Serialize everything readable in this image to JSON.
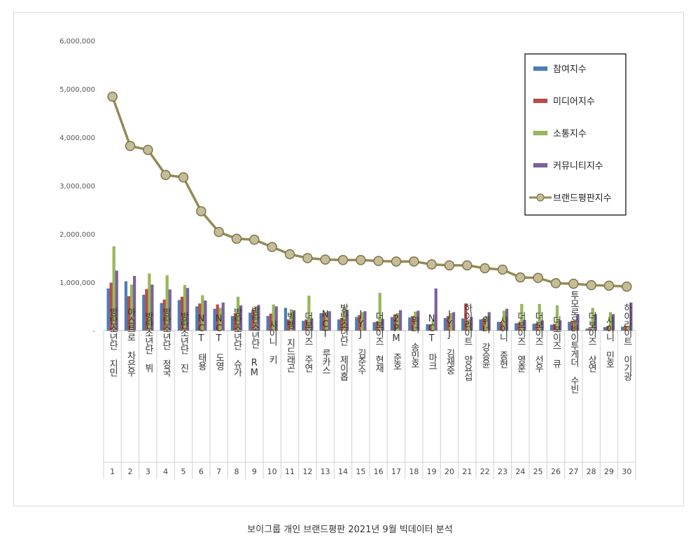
{
  "caption": "보이그룹 개인 브랜드평판  2021년 9월 빅데이터 분석",
  "chart_data": {
    "type": "bar",
    "title": "",
    "xlabel": "",
    "ylabel": "",
    "ylim": [
      0,
      6000000
    ],
    "yticks": [
      {
        "value": 0,
        "label": "-"
      },
      {
        "value": 1000000,
        "label": "1,000,000"
      },
      {
        "value": 2000000,
        "label": "2,000,000"
      },
      {
        "value": 3000000,
        "label": "3,000,000"
      },
      {
        "value": 4000000,
        "label": "4,000,000"
      },
      {
        "value": 5000000,
        "label": "5,000,000"
      },
      {
        "value": 6000000,
        "label": "6,000,000"
      }
    ],
    "ranks": [
      "1",
      "2",
      "3",
      "4",
      "5",
      "6",
      "7",
      "8",
      "9",
      "10",
      "11",
      "12",
      "13",
      "14",
      "15",
      "16",
      "17",
      "18",
      "19",
      "20",
      "21",
      "22",
      "23",
      "24",
      "25",
      "26",
      "27",
      "28",
      "29",
      "30"
    ],
    "categories": [
      "방탄소년단 지민",
      "아스트로 차은우",
      "방탄소년단 뷔",
      "방탄소년단 정국",
      "방탄소년단 진",
      "NCT 태용",
      "NCT 도영",
      "방탄소년단 슈가",
      "방탄소년단 RM",
      "샤이니 키",
      "빅뱅 지드래곤",
      "더보이즈 주연",
      "NCT 루카스",
      "방탄소년단 제이홉",
      "JYJ 김준수",
      "더보이즈 현재",
      "2PM 준호",
      "위너 송민호",
      "NCT 마크",
      "JYJ 김재중",
      "하이라이트 양요섭",
      "위너 강승윤",
      "샤이니 종현",
      "더보이즈 영훈",
      "더보이즈 선우",
      "더보이즈 큐",
      "투모로우바이투게더 수빈",
      "더보이즈 상연",
      "샤이니 민호",
      "하이라이트 이기광"
    ],
    "series": [
      {
        "name": "참여지수",
        "color": "#4a7ebb",
        "values": [
          870000,
          1020000,
          740000,
          570000,
          630000,
          500000,
          450000,
          300000,
          370000,
          300000,
          470000,
          200000,
          360000,
          230000,
          280000,
          170000,
          280000,
          270000,
          130000,
          260000,
          250000,
          230000,
          180000,
          150000,
          140000,
          120000,
          180000,
          40000,
          70000,
          80000
        ]
      },
      {
        "name": "미디어지수",
        "color": "#be4b48",
        "values": [
          990000,
          710000,
          860000,
          640000,
          700000,
          560000,
          540000,
          360000,
          430000,
          350000,
          230000,
          230000,
          360000,
          260000,
          320000,
          190000,
          330000,
          300000,
          130000,
          300000,
          560000,
          250000,
          180000,
          160000,
          150000,
          140000,
          200000,
          50000,
          90000,
          100000
        ]
      },
      {
        "name": "소통지수",
        "color": "#98b954",
        "values": [
          1740000,
          950000,
          1180000,
          1140000,
          940000,
          730000,
          470000,
          700000,
          500000,
          540000,
          440000,
          720000,
          380000,
          490000,
          380000,
          780000,
          360000,
          390000,
          210000,
          360000,
          230000,
          300000,
          410000,
          550000,
          550000,
          520000,
          210000,
          470000,
          380000,
          100000
        ]
      },
      {
        "name": "커뮤니티지수",
        "color": "#7d60a0",
        "values": [
          1240000,
          1130000,
          950000,
          850000,
          880000,
          620000,
          580000,
          520000,
          530000,
          500000,
          420000,
          250000,
          400000,
          430000,
          400000,
          240000,
          420000,
          410000,
          870000,
          380000,
          280000,
          380000,
          450000,
          220000,
          210000,
          210000,
          340000,
          340000,
          340000,
          580000
        ]
      }
    ],
    "line": {
      "name": "브랜드평판지수",
      "color": "#948a54",
      "values": [
        4840000,
        3820000,
        3740000,
        3220000,
        3170000,
        2470000,
        2040000,
        1900000,
        1880000,
        1730000,
        1580000,
        1500000,
        1470000,
        1460000,
        1460000,
        1440000,
        1430000,
        1430000,
        1370000,
        1350000,
        1350000,
        1290000,
        1260000,
        1100000,
        1090000,
        980000,
        970000,
        940000,
        930000,
        910000
      ]
    },
    "legend": {
      "position": "top-right"
    },
    "grid": false
  }
}
